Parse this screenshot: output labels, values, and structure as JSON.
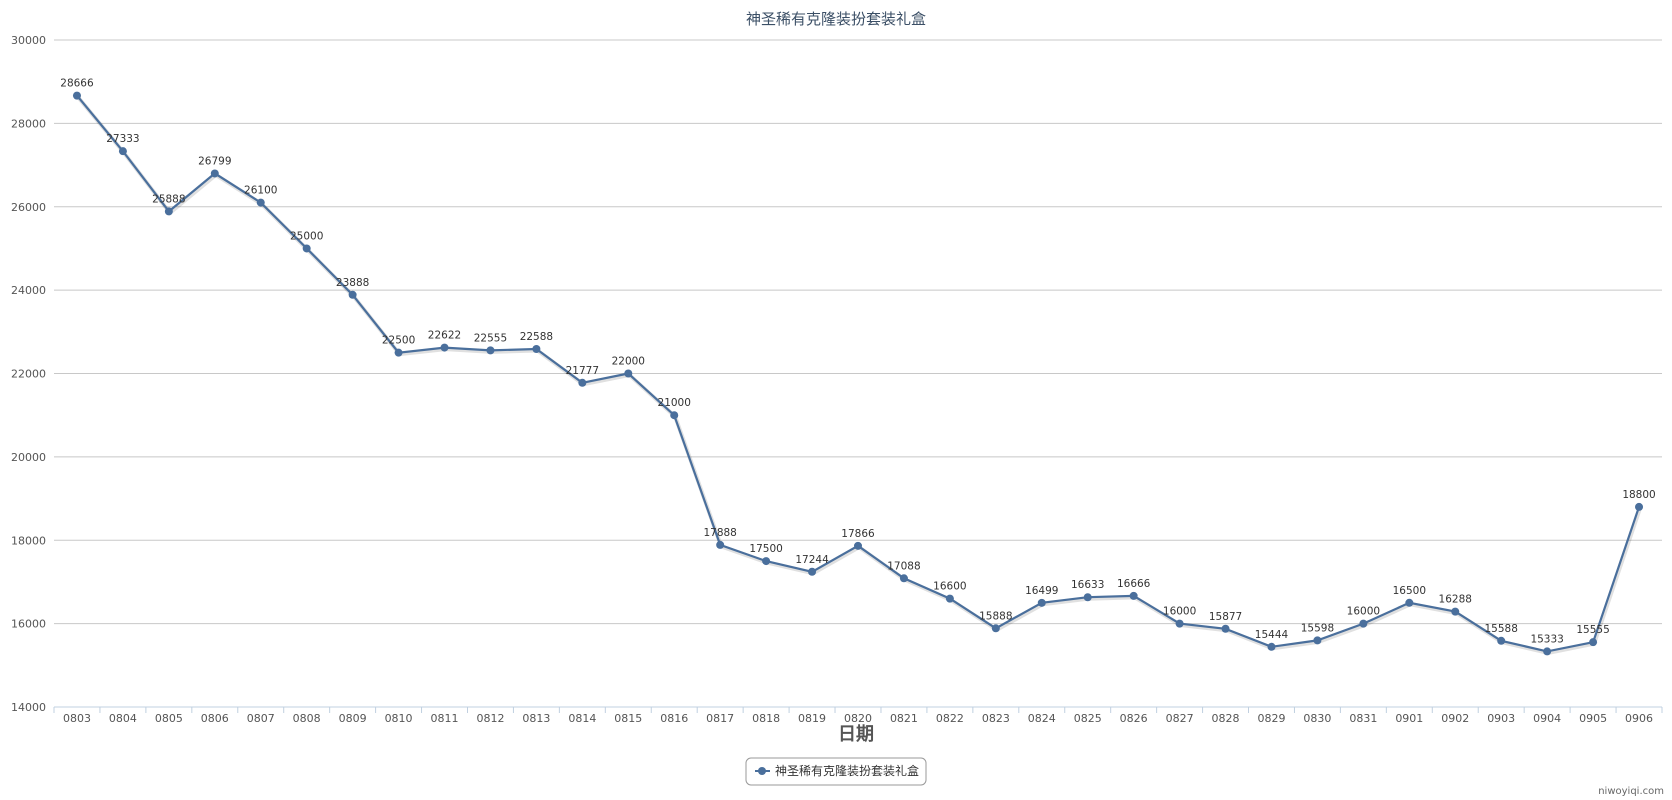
{
  "colors": {
    "series": "#4a6f9c",
    "grid": "#c8c8c8",
    "axis": "#c0d0e0"
  },
  "chart_data": {
    "type": "line",
    "title": "神圣稀有克隆装扮套装礼盒",
    "xlabel": "日期",
    "ylabel": "",
    "ylim": [
      14000,
      30000
    ],
    "yticks": [
      "14000",
      "16000",
      "18000",
      "20000",
      "22000",
      "24000",
      "26000",
      "28000",
      "30000"
    ],
    "grid": true,
    "legend_position": "bottom-center",
    "categories": [
      "0803",
      "0804",
      "0805",
      "0806",
      "0807",
      "0808",
      "0809",
      "0810",
      "0811",
      "0812",
      "0813",
      "0814",
      "0815",
      "0816",
      "0817",
      "0818",
      "0819",
      "0820",
      "0821",
      "0822",
      "0823",
      "0824",
      "0825",
      "0826",
      "0827",
      "0828",
      "0829",
      "0830",
      "0831",
      "0901",
      "0902",
      "0903",
      "0904",
      "0905",
      "0906"
    ],
    "series": [
      {
        "name": "神圣稀有克隆装扮套装礼盒",
        "values": [
          28666,
          27333,
          25888,
          26799,
          26100,
          25000,
          23888,
          22500,
          22622,
          22555,
          22588,
          21777,
          22000,
          21000,
          17888,
          17500,
          17244,
          17866,
          17088,
          16600,
          15888,
          16499,
          16633,
          16666,
          16000,
          15877,
          15444,
          15598,
          16000,
          16500,
          16288,
          15588,
          15333,
          15555,
          18800
        ]
      }
    ]
  },
  "watermark": "niwoyiqi.com"
}
